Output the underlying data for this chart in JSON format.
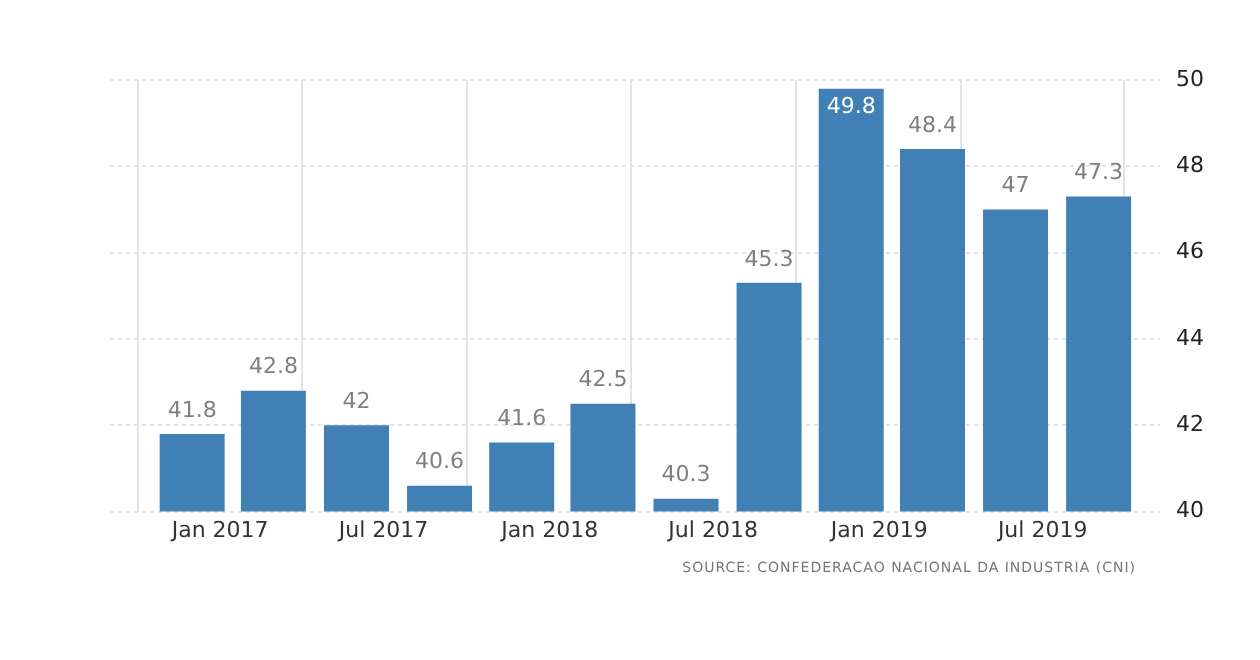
{
  "chart_data": {
    "type": "bar",
    "x": [
      "2016-12-01",
      "2017-03-01",
      "2017-06-01",
      "2017-09-01",
      "2017-12-01",
      "2018-03-01",
      "2018-06-01",
      "2018-09-01",
      "2018-12-01",
      "2019-03-01",
      "2019-06-01",
      "2019-09-01"
    ],
    "values": [
      41.8,
      42.8,
      42,
      40.6,
      41.6,
      42.5,
      40.3,
      45.3,
      49.8,
      48.4,
      47,
      47.3
    ],
    "color": "#4180b4",
    "xlim": [
      "2016-09-01",
      "2019-11-08"
    ],
    "xticks": [
      {
        "value": "2017-01-01",
        "label": "Jan 2017"
      },
      {
        "value": "2017-07-01",
        "label": "Jul 2017"
      },
      {
        "value": "2018-01-01",
        "label": "Jan 2018"
      },
      {
        "value": "2018-07-01",
        "label": "Jul 2018"
      },
      {
        "value": "2019-01-01",
        "label": "Jan 2019"
      },
      {
        "value": "2019-07-01",
        "label": "Jul 2019"
      }
    ],
    "ylim": [
      40,
      50
    ],
    "yticks": [
      40,
      42,
      44,
      46,
      48,
      50
    ],
    "grid": true,
    "data_labels": true,
    "legend": false,
    "annotations": [
      "SOURCE: CONFEDERACAO NACIONAL DA INDUSTRIA (CNI)"
    ]
  }
}
